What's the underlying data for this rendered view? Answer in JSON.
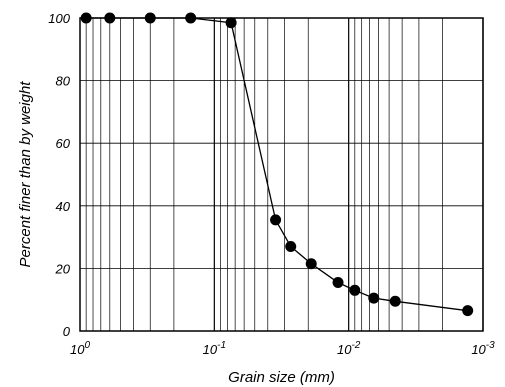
{
  "chart_data": {
    "type": "scatter",
    "xlabel": "Grain size (mm)",
    "ylabel": "Percent finer than by weight",
    "x_scale": "log",
    "x_reversed": true,
    "xlim": [
      1,
      0.001
    ],
    "ylim": [
      0,
      100
    ],
    "yticks": [
      0,
      20,
      40,
      60,
      80,
      100
    ],
    "xticks": [
      {
        "value": 1,
        "base": "10",
        "exp": "0"
      },
      {
        "value": 0.1,
        "base": "10",
        "exp": "-1"
      },
      {
        "value": 0.01,
        "base": "10",
        "exp": "-2"
      },
      {
        "value": 0.001,
        "base": "10",
        "exp": "-3"
      }
    ],
    "grid": true,
    "line_connected": true,
    "series": [
      {
        "x": [
          0.9,
          0.6,
          0.3,
          0.15,
          0.075,
          0.035,
          0.027,
          0.019,
          0.012,
          0.009,
          0.0065,
          0.0045,
          0.0013
        ],
        "y": [
          100,
          100,
          100,
          100,
          98.5,
          35.5,
          27,
          21.5,
          15.5,
          13,
          10.5,
          9.5,
          6.5
        ]
      }
    ]
  }
}
